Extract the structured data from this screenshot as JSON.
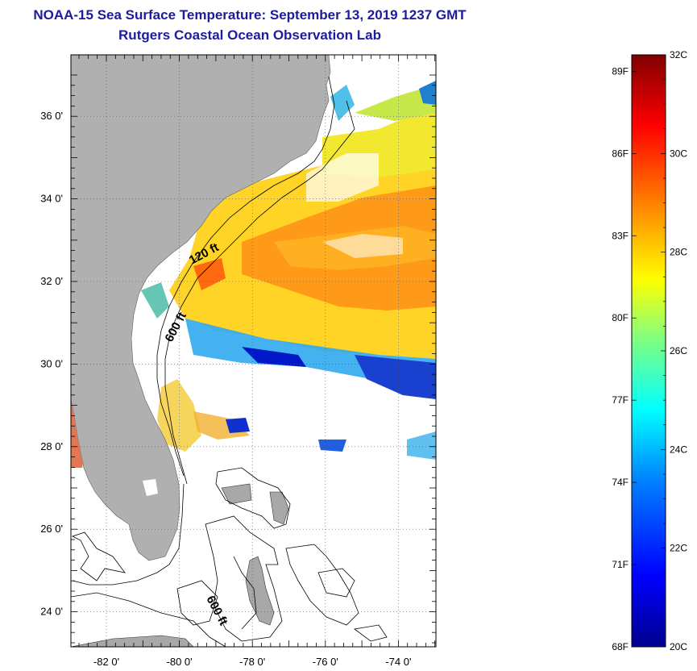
{
  "header": {
    "title": "NOAA-15 Sea Surface Temperature:  September 13, 2019 1237 GMT",
    "subtitle": "Rutgers Coastal Ocean Observation Lab"
  },
  "map": {
    "lat_ticks": [
      "36 0'",
      "34 0'",
      "32 0'",
      "30 0'",
      "28 0'",
      "26 0'",
      "24 0'"
    ],
    "lon_ticks": [
      "-82 0'",
      "-80 0'",
      "-78 0'",
      "-76 0'",
      "-74 0'"
    ],
    "contour_labels": [
      "120 ft",
      "600 ft",
      "600 ft"
    ],
    "lat_range": [
      23,
      37.1
    ],
    "lon_range": [
      -83,
      -73
    ]
  },
  "colorbar": {
    "celsius_ticks": [
      "32C",
      "30C",
      "28C",
      "26C",
      "24C",
      "22C",
      "20C"
    ],
    "fahrenheit_ticks": [
      "89F",
      "86F",
      "83F",
      "80F",
      "77F",
      "74F",
      "71F",
      "68F"
    ],
    "range_c": [
      20,
      32
    ],
    "colors": [
      "#00008f",
      "#0000ff",
      "#0080ff",
      "#00ffff",
      "#80ff80",
      "#ffff00",
      "#ff8000",
      "#ff0000",
      "#800000"
    ]
  },
  "colors": {
    "land": "#b0b0b0",
    "title": "#1c1c9c"
  }
}
